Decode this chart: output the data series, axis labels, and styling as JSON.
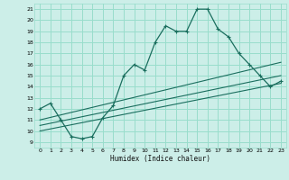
{
  "xlabel": "Humidex (Indice chaleur)",
  "bg_color": "#cceee8",
  "grid_color": "#99ddcc",
  "line_color": "#1a6e5e",
  "xlim": [
    -0.5,
    23.5
  ],
  "ylim": [
    8.5,
    21.5
  ],
  "xticks": [
    0,
    1,
    2,
    3,
    4,
    5,
    6,
    7,
    8,
    9,
    10,
    11,
    12,
    13,
    14,
    15,
    16,
    17,
    18,
    19,
    20,
    21,
    22,
    23
  ],
  "yticks": [
    9,
    10,
    11,
    12,
    13,
    14,
    15,
    16,
    17,
    18,
    19,
    20,
    21
  ],
  "main_line": [
    [
      0,
      12.0
    ],
    [
      1,
      12.5
    ],
    [
      2,
      11.0
    ],
    [
      3,
      9.5
    ],
    [
      4,
      9.3
    ],
    [
      5,
      9.5
    ],
    [
      6,
      11.2
    ],
    [
      7,
      12.3
    ],
    [
      8,
      15.0
    ],
    [
      9,
      16.0
    ],
    [
      10,
      15.5
    ],
    [
      11,
      18.0
    ],
    [
      12,
      19.5
    ],
    [
      13,
      19.0
    ],
    [
      14,
      19.0
    ],
    [
      15,
      21.0
    ],
    [
      16,
      21.0
    ],
    [
      17,
      19.2
    ],
    [
      18,
      18.5
    ],
    [
      19,
      17.0
    ],
    [
      20,
      16.0
    ],
    [
      21,
      15.0
    ],
    [
      22,
      14.0
    ],
    [
      23,
      14.5
    ]
  ],
  "reg_line1": [
    [
      0,
      11.0
    ],
    [
      23,
      16.2
    ]
  ],
  "reg_line2": [
    [
      0,
      10.5
    ],
    [
      23,
      15.0
    ]
  ],
  "reg_line3": [
    [
      0,
      10.0
    ],
    [
      23,
      14.3
    ]
  ]
}
